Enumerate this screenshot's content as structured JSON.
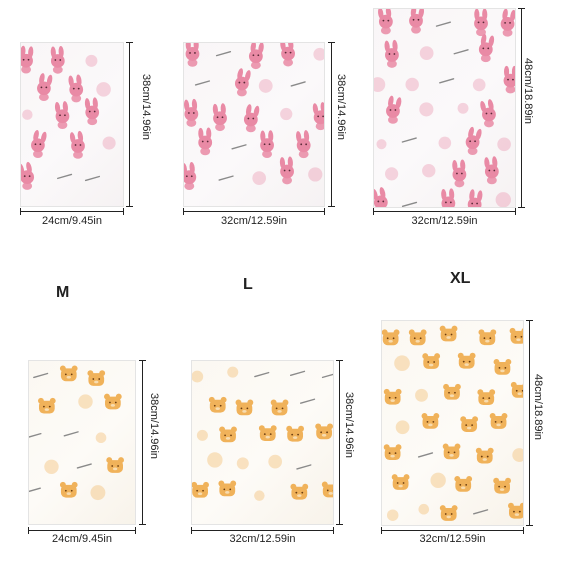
{
  "size_labels": {
    "m": "M",
    "l": "L",
    "xl": "XL"
  },
  "pink_row": {
    "bag_small": {
      "width": "24cm/9.45in",
      "height": "38cm/14.96in"
    },
    "bag_medium": {
      "width": "32cm/12.59in",
      "height": "38cm/14.96in"
    },
    "bag_large": {
      "width": "32cm/12.59in",
      "height": "48cm/18.89in"
    }
  },
  "orange_row": {
    "bag_small": {
      "width": "24cm/9.45in",
      "height": "38cm/14.96in"
    },
    "bag_medium": {
      "width": "32cm/12.59in",
      "height": "38cm/14.96in"
    },
    "bag_large": {
      "width": "32cm/12.59in",
      "height": "48cm/18.89in"
    }
  },
  "colors": {
    "pink_pattern": "#e98aa5",
    "orange_pattern": "#f0b25a"
  },
  "icons": {
    "pink_motif": "bunny-icon",
    "orange_motif": "bear-icon"
  }
}
